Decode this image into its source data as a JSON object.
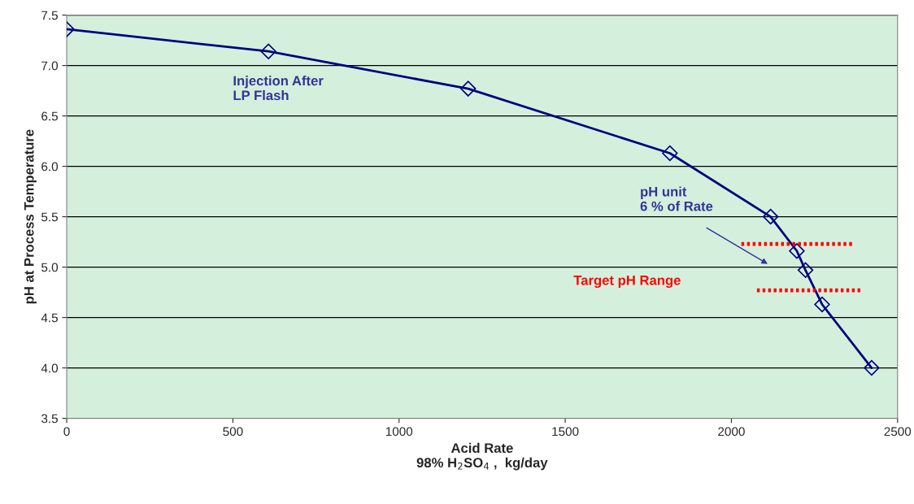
{
  "chart_data": {
    "type": "line",
    "xlabel": "Acid Rate\n98% H$_{2}$SO$_{4}$ ,  kg/day",
    "ylabel": "pH at Process Temperature",
    "xlim": [
      0,
      2500
    ],
    "xticks": [
      0,
      500,
      1000,
      1500,
      2000,
      2500
    ],
    "ylim": [
      3.5,
      7.5
    ],
    "yticks": [
      3.5,
      {
        "value": 4,
        "label": "4.0"
      },
      4.5,
      {
        "value": 5,
        "label": "5.0"
      },
      5.5,
      {
        "value": 6,
        "label": "6.0"
      },
      6.5,
      {
        "value": 7,
        "label": "7.0"
      },
      7.5
    ],
    "grid": "y",
    "marker": "diamond",
    "line_style": "solid",
    "series": [
      {
        "color": "#000080",
        "x": [
          0,
          607,
          1208,
          1815,
          2118,
          2197,
          2223,
          2273,
          2422
        ],
        "values": [
          7.36,
          7.14,
          6.77,
          6.13,
          5.5,
          5.16,
          4.97,
          4.63,
          4.0
        ]
      },
      {
        "color": "#ff0000",
        "line_style": "dotted",
        "marker": "none",
        "x": [
          2030,
          2363
        ],
        "values": [
          5.23,
          5.23
        ]
      },
      {
        "color": "#ff0000",
        "line_style": "dotted",
        "marker": "none",
        "x": [
          2077,
          2388
        ],
        "values": [
          4.77,
          4.77
        ]
      }
    ],
    "annotations": [
      "Injection After\nLP Flash",
      "pH unit\n6 % of Rate",
      "Target pH Range"
    ]
  }
}
